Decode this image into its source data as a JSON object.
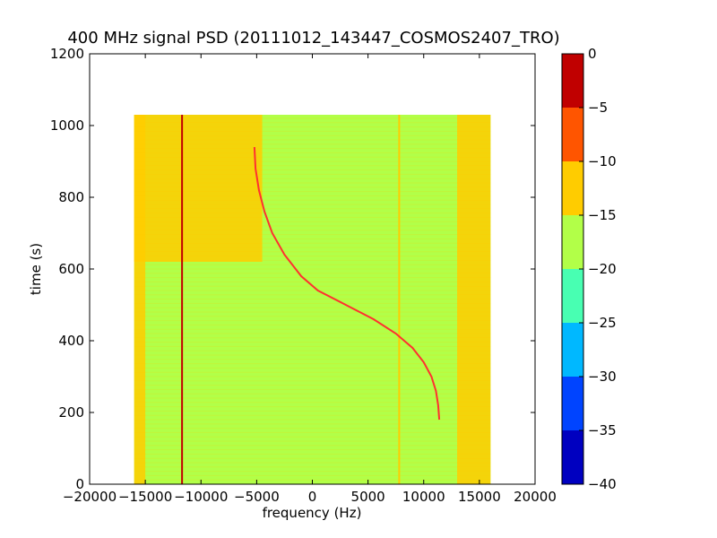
{
  "chart_data": {
    "type": "heatmap",
    "title": "400 MHz signal PSD (20111012_143447_COSMOS2407_TRO)",
    "xlabel": "frequency (Hz)",
    "ylabel": "time (s)",
    "xlim": [
      -20000,
      20000
    ],
    "ylim": [
      0,
      1200
    ],
    "xticks": [
      -20000,
      -15000,
      -10000,
      -5000,
      0,
      5000,
      10000,
      15000,
      20000
    ],
    "xtick_labels": [
      "−20000",
      "−15000",
      "−10000",
      "−5000",
      "0",
      "5000",
      "10000",
      "15000",
      "20000"
    ],
    "yticks": [
      0,
      200,
      400,
      600,
      800,
      1000,
      1200
    ],
    "ytick_labels": [
      "0",
      "200",
      "400",
      "600",
      "800",
      "1000",
      "1200"
    ],
    "data_extent": {
      "freq_range": [
        -16000,
        16000
      ],
      "time_range": [
        0,
        1030
      ]
    },
    "background_level_range": [
      -20,
      -15
    ],
    "regions": [
      {
        "freq_range": [
          -16000,
          -4500
        ],
        "time_range": [
          620,
          1030
        ],
        "level_range": [
          -15,
          -10
        ]
      },
      {
        "freq_range": [
          -16000,
          -15000
        ],
        "time_range": [
          0,
          1030
        ],
        "level_range": [
          -15,
          -10
        ]
      },
      {
        "freq_range": [
          13000,
          16000
        ],
        "time_range": [
          0,
          1030
        ],
        "level_range": [
          -15,
          -10
        ]
      }
    ],
    "vertical_lines": [
      {
        "freq": -11700,
        "level_range": [
          -5,
          0
        ]
      },
      {
        "freq": 7800,
        "level_range": [
          -15,
          -10
        ]
      }
    ],
    "doppler_trace": {
      "level_range": [
        -5,
        0
      ],
      "points": [
        [
          -5200,
          940
        ],
        [
          -5100,
          880
        ],
        [
          -4800,
          820
        ],
        [
          -4300,
          760
        ],
        [
          -3600,
          700
        ],
        [
          -2500,
          640
        ],
        [
          -1000,
          580
        ],
        [
          500,
          540
        ],
        [
          3000,
          500
        ],
        [
          5500,
          460
        ],
        [
          7500,
          420
        ],
        [
          9000,
          380
        ],
        [
          10000,
          340
        ],
        [
          10700,
          300
        ],
        [
          11100,
          260
        ],
        [
          11300,
          220
        ],
        [
          11400,
          180
        ]
      ]
    },
    "colorbar": {
      "range": [
        -40,
        0
      ],
      "ticks": [
        0,
        -5,
        -10,
        -15,
        -20,
        -25,
        -30,
        -35,
        -40
      ],
      "tick_labels": [
        "0",
        "−5",
        "−10",
        "−15",
        "−20",
        "−25",
        "−30",
        "−35",
        "−40"
      ],
      "bins": [
        {
          "range": [
            -5,
            0
          ],
          "color": "#c00000"
        },
        {
          "range": [
            -10,
            -5
          ],
          "color": "#ff5500"
        },
        {
          "range": [
            -15,
            -10
          ],
          "color": "#ffcc00"
        },
        {
          "range": [
            -20,
            -15
          ],
          "color": "#b2ff48"
        },
        {
          "range": [
            -25,
            -20
          ],
          "color": "#48ffb2"
        },
        {
          "range": [
            -30,
            -25
          ],
          "color": "#00b8ff"
        },
        {
          "range": [
            -35,
            -30
          ],
          "color": "#0044ff"
        },
        {
          "range": [
            -40,
            -35
          ],
          "color": "#0000c0"
        }
      ]
    }
  }
}
